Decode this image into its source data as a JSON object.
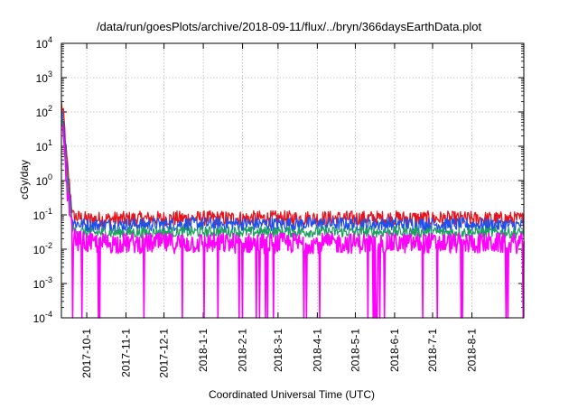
{
  "chart_data": {
    "type": "line",
    "title": "/data/run/goesPlots/archive/2018-09-11/flux/../bryn/366daysEarthData.plot",
    "xlabel": "Coordinated Universal Time (UTC)",
    "ylabel": "cGy/day",
    "yscale": "log",
    "ylim": [
      0.0001,
      10000
    ],
    "xlim": [
      "2017-09-11",
      "2018-09-11"
    ],
    "x_tick_labels": [
      "2017-10-1",
      "2017-11-1",
      "2017-12-1",
      "2018-1-1",
      "2018-2-1",
      "2018-3-1",
      "2018-4-1",
      "2018-5-1",
      "2018-6-1",
      "2018-7-1",
      "2018-8-1"
    ],
    "x_tick_dates": [
      "2017-10-01",
      "2017-11-01",
      "2017-12-01",
      "2018-01-01",
      "2018-02-01",
      "2018-03-01",
      "2018-04-01",
      "2018-05-01",
      "2018-06-01",
      "2018-07-01",
      "2018-08-01"
    ],
    "y_tick_labels": [
      {
        "base": "10",
        "exp": "-4"
      },
      {
        "base": "10",
        "exp": "-3"
      },
      {
        "base": "10",
        "exp": "-2"
      },
      {
        "base": "10",
        "exp": "-1"
      },
      {
        "base": "10",
        "exp": "0"
      },
      {
        "base": "10",
        "exp": "1"
      },
      {
        "base": "10",
        "exp": "2"
      },
      {
        "base": "10",
        "exp": "3"
      },
      {
        "base": "10",
        "exp": "4"
      }
    ],
    "grid": true,
    "legend": "none",
    "series": [
      {
        "color": "#e8141c",
        "x": [
          "2017-09-11",
          "2017-09-13",
          "2017-09-15",
          "2017-09-20",
          "2017-10-01",
          "2018-01-01",
          "2018-06-01",
          "2018-09-11"
        ],
        "y": [
          180,
          60,
          5,
          0.09,
          0.075,
          0.08,
          0.08,
          0.075
        ]
      },
      {
        "color": "#2050e8",
        "x": [
          "2017-09-11",
          "2017-09-13",
          "2017-09-15",
          "2017-09-20",
          "2017-10-01",
          "2018-01-01",
          "2018-06-01",
          "2018-09-11"
        ],
        "y": [
          120,
          40,
          3,
          0.06,
          0.05,
          0.055,
          0.055,
          0.05
        ]
      },
      {
        "color": "#20a060",
        "x": [
          "2017-09-11",
          "2017-09-13",
          "2017-09-15",
          "2017-09-20",
          "2017-10-01",
          "2018-01-01",
          "2018-06-01",
          "2018-09-11"
        ],
        "y": [
          60,
          20,
          1.5,
          0.035,
          0.03,
          0.032,
          0.032,
          0.03
        ]
      },
      {
        "color": "#ff00ff",
        "x": [
          "2017-09-11",
          "2017-09-13",
          "2017-09-15",
          "2017-09-20",
          "2017-10-01",
          "2018-01-01",
          "2018-06-01",
          "2018-09-11"
        ],
        "y": [
          40,
          10,
          0.8,
          0.02,
          0.015,
          0.015,
          0.015,
          0.015
        ]
      }
    ]
  }
}
